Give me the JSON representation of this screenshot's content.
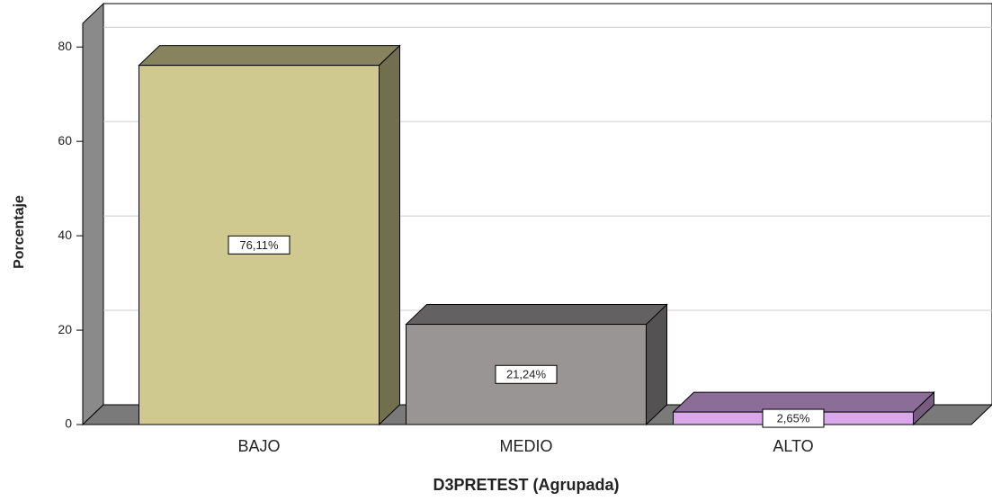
{
  "chart_data": {
    "type": "bar3d",
    "categories": [
      "BAJO",
      "MEDIO",
      "ALTO"
    ],
    "values": [
      76.11,
      21.24,
      2.65
    ],
    "value_labels": [
      "76,11%",
      "21,24%",
      "2,65%"
    ],
    "colors": [
      "#cfc990",
      "#999595",
      "#d8a8ea"
    ],
    "xlabel": "D3PRETEST (Agrupada)",
    "ylabel": "Porcentaje",
    "ylim": [
      0,
      85
    ],
    "yticks": [
      0,
      20,
      40,
      60,
      80
    ],
    "grid": true
  }
}
